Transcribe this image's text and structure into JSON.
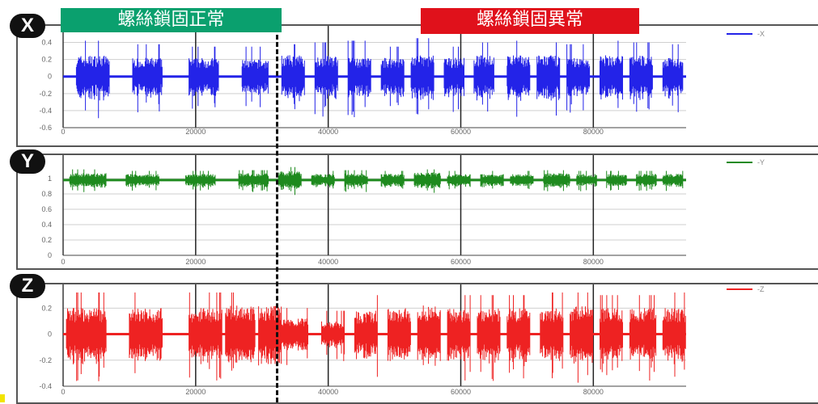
{
  "labels": {
    "normal": "螺絲鎖固正常",
    "abnormal": "螺絲鎖固異常"
  },
  "badges": {
    "x": "X",
    "y": "Y",
    "z": "Z"
  },
  "colors": {
    "normal_label_bg": "#0aa06e",
    "abnormal_label_bg": "#e0111b",
    "x_series": "#2323e8",
    "y_series": "#1e8a1e",
    "z_series": "#ee2222"
  },
  "chart_data": [
    {
      "type": "line",
      "title": "",
      "xlabel": "",
      "ylabel": "",
      "series": [
        {
          "name": "-X",
          "color": "#2323e8",
          "baseline": 0,
          "bursts": [
            [
              2000,
              7000,
              0.25,
              0.42
            ],
            [
              10500,
              15000,
              0.22,
              0.38
            ],
            [
              19000,
              23500,
              0.22,
              0.35
            ],
            [
              27000,
              31000,
              0.2,
              0.35
            ],
            [
              33000,
              36500,
              0.25,
              0.38
            ],
            [
              38000,
              41500,
              0.25,
              0.4
            ],
            [
              43000,
              46500,
              0.22,
              0.42
            ],
            [
              48000,
              51500,
              0.22,
              0.35
            ],
            [
              52500,
              56000,
              0.25,
              0.45
            ],
            [
              57500,
              60500,
              0.22,
              0.35
            ],
            [
              62000,
              65000,
              0.25,
              0.4
            ],
            [
              67000,
              70500,
              0.25,
              0.42
            ],
            [
              71500,
              75000,
              0.25,
              0.4
            ],
            [
              76000,
              79500,
              0.22,
              0.38
            ],
            [
              81000,
              84500,
              0.25,
              0.42
            ],
            [
              85500,
              89000,
              0.25,
              0.4
            ],
            [
              90500,
              93500,
              0.22,
              0.38
            ]
          ]
        }
      ],
      "xlim": [
        0,
        94000
      ],
      "ylim": [
        -0.6,
        0.5
      ],
      "xticks": [
        0,
        20000,
        40000,
        60000,
        80000
      ],
      "yticks": [
        0.4,
        0.2,
        0,
        -0.2,
        -0.4,
        -0.6
      ],
      "ytick_labels": [
        "0.4",
        "0.2",
        "0",
        "-0.2",
        "-0.4",
        "-0.6"
      ],
      "grid": true,
      "legend": "top-right"
    },
    {
      "type": "line",
      "title": "",
      "xlabel": "",
      "ylabel": "",
      "series": [
        {
          "name": "-Y",
          "color": "#1e8a1e",
          "baseline": 0.98,
          "bursts": [
            [
              1000,
              6500,
              0.09,
              0.14
            ],
            [
              9500,
              14500,
              0.08,
              0.12
            ],
            [
              18500,
              23000,
              0.08,
              0.12
            ],
            [
              26500,
              31000,
              0.09,
              0.13
            ],
            [
              32500,
              36000,
              0.12,
              0.17
            ],
            [
              37500,
              41000,
              0.08,
              0.12
            ],
            [
              42500,
              46000,
              0.09,
              0.13
            ],
            [
              48000,
              51500,
              0.08,
              0.12
            ],
            [
              53000,
              57000,
              0.1,
              0.14
            ],
            [
              58000,
              61500,
              0.08,
              0.12
            ],
            [
              63000,
              66500,
              0.08,
              0.12
            ],
            [
              67500,
              71000,
              0.08,
              0.12
            ],
            [
              72500,
              76500,
              0.09,
              0.13
            ],
            [
              77500,
              80500,
              0.08,
              0.12
            ],
            [
              82000,
              85000,
              0.08,
              0.12
            ],
            [
              86500,
              89500,
              0.08,
              0.12
            ],
            [
              90500,
              93500,
              0.08,
              0.12
            ]
          ]
        }
      ],
      "xlim": [
        0,
        94000
      ],
      "ylim": [
        0,
        1.2
      ],
      "xticks": [
        0,
        20000,
        40000,
        60000,
        80000
      ],
      "yticks": [
        1,
        0.8,
        0.6,
        0.4,
        0.2,
        0
      ],
      "ytick_labels": [
        "1",
        "0.8",
        "0.6",
        "0.4",
        "0.2",
        "0"
      ],
      "grid": true,
      "legend": "top-right"
    },
    {
      "type": "line",
      "title": "",
      "xlabel": "",
      "ylabel": "",
      "series": [
        {
          "name": "-Z",
          "color": "#ee2222",
          "baseline": 0,
          "bursts": [
            [
              500,
              6500,
              0.2,
              0.32
            ],
            [
              10000,
              15000,
              0.2,
              0.32
            ],
            [
              19000,
              24000,
              0.2,
              0.32
            ],
            [
              24500,
              29000,
              0.22,
              0.32
            ],
            [
              29500,
              33000,
              0.22,
              0.32
            ],
            [
              33000,
              37000,
              0.12,
              0.2
            ],
            [
              39000,
              42500,
              0.1,
              0.18
            ],
            [
              44000,
              47500,
              0.18,
              0.3
            ],
            [
              49000,
              52500,
              0.2,
              0.3
            ],
            [
              53500,
              57000,
              0.22,
              0.36
            ],
            [
              58000,
              61500,
              0.2,
              0.3
            ],
            [
              62500,
              66000,
              0.2,
              0.3
            ],
            [
              67000,
              70500,
              0.2,
              0.3
            ],
            [
              72000,
              75500,
              0.2,
              0.32
            ],
            [
              76500,
              80000,
              0.22,
              0.32
            ],
            [
              81000,
              84500,
              0.2,
              0.3
            ],
            [
              85500,
              89500,
              0.2,
              0.3
            ],
            [
              90500,
              94000,
              0.2,
              0.32
            ]
          ]
        }
      ],
      "xlim": [
        0,
        94000
      ],
      "ylim": [
        -0.4,
        0.32
      ],
      "xticks": [
        0,
        20000,
        40000,
        60000,
        80000
      ],
      "yticks": [
        0.2,
        0,
        -0.2,
        -0.4
      ],
      "ytick_labels": [
        "0.2",
        "0",
        "-0.2",
        "-0.4"
      ],
      "grid": true,
      "legend": "top-right"
    }
  ]
}
